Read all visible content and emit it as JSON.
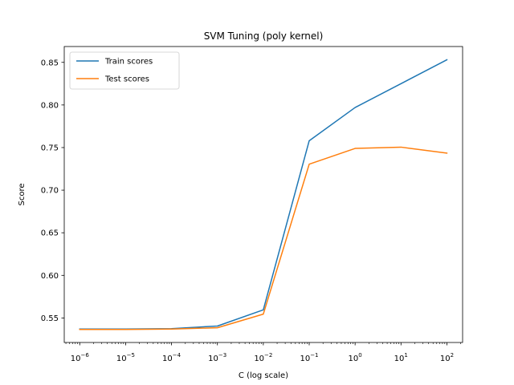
{
  "chart_data": {
    "type": "line",
    "title": "SVM Tuning (poly kernel)",
    "xlabel": "C (log scale)",
    "ylabel": "Score",
    "xscale": "log",
    "x": [
      1e-06,
      1e-05,
      0.0001,
      0.001,
      0.01,
      0.1,
      1,
      10,
      100
    ],
    "xticks": [
      {
        "value": 1e-06,
        "base": "10",
        "exp": "−6"
      },
      {
        "value": 1e-05,
        "base": "10",
        "exp": "−5"
      },
      {
        "value": 0.0001,
        "base": "10",
        "exp": "−4"
      },
      {
        "value": 0.001,
        "base": "10",
        "exp": "−3"
      },
      {
        "value": 0.01,
        "base": "10",
        "exp": "−2"
      },
      {
        "value": 0.1,
        "base": "10",
        "exp": "−1"
      },
      {
        "value": 1,
        "base": "10",
        "exp": "0"
      },
      {
        "value": 10,
        "base": "10",
        "exp": "1"
      },
      {
        "value": 100,
        "base": "10",
        "exp": "2"
      }
    ],
    "yticks": [
      "0.55",
      "0.60",
      "0.65",
      "0.70",
      "0.75",
      "0.80",
      "0.85"
    ],
    "xlim": [
      4.6e-07,
      220
    ],
    "ylim": [
      0.5212,
      0.8686
    ],
    "grid": false,
    "legend_position": "top-left",
    "series": [
      {
        "name": "Train scores",
        "color": "#1f77b4",
        "values": [
          0.537,
          0.537,
          0.5375,
          0.5405,
          0.5595,
          0.758,
          0.797,
          0.825,
          0.853
        ]
      },
      {
        "name": "Test scores",
        "color": "#ff7f0e",
        "values": [
          0.5365,
          0.5365,
          0.537,
          0.5385,
          0.5545,
          0.7305,
          0.749,
          0.7505,
          0.7435
        ]
      }
    ]
  }
}
